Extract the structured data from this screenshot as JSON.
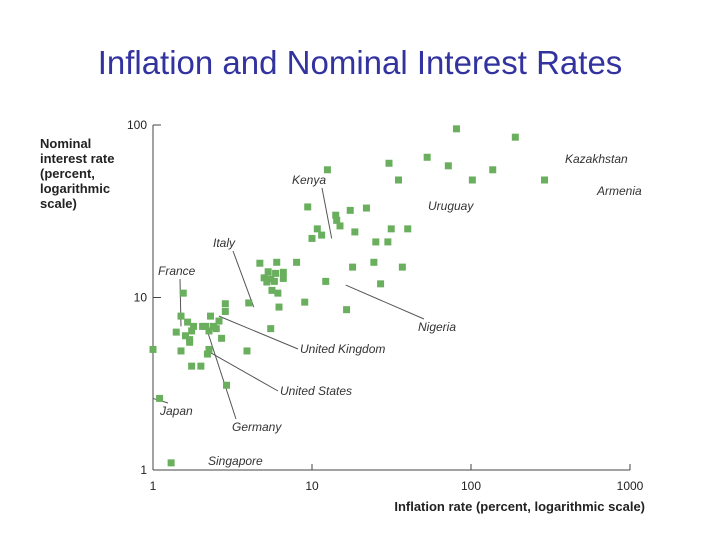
{
  "page": {
    "title": "Inflation and Nominal Interest Rates"
  },
  "chart_data": {
    "type": "scatter",
    "title": "Inflation and Nominal Interest Rates",
    "xlabel": "Inflation rate (percent, logarithmic scale)",
    "ylabel": "Nominal\ninterest rate\n(percent,\nlogarithmic\nscale)",
    "xscale": "log",
    "yscale": "log",
    "xlim": [
      1,
      1000
    ],
    "ylim": [
      1,
      100
    ],
    "xticks": [
      1,
      10,
      100,
      1000
    ],
    "yticks": [
      1,
      10,
      100
    ],
    "xtick_labels": [
      "1",
      "10",
      "100",
      "1000"
    ],
    "ytick_labels": [
      "1",
      "10",
      "100"
    ],
    "color": "#6aaf5e",
    "points": [
      [
        1.0,
        5.0
      ],
      [
        1.1,
        2.6
      ],
      [
        1.3,
        1.1
      ],
      [
        1.4,
        6.3
      ],
      [
        1.5,
        4.9
      ],
      [
        1.55,
        10.6
      ],
      [
        1.5,
        7.8
      ],
      [
        1.6,
        6.0
      ],
      [
        1.65,
        7.2
      ],
      [
        1.7,
        5.7
      ],
      [
        1.7,
        5.5
      ],
      [
        1.75,
        6.4
      ],
      [
        1.8,
        6.8
      ],
      [
        1.75,
        4.0
      ],
      [
        2.0,
        4.0
      ],
      [
        2.05,
        6.8
      ],
      [
        2.15,
        6.8
      ],
      [
        2.2,
        4.7
      ],
      [
        2.25,
        6.4
      ],
      [
        2.25,
        5.0
      ],
      [
        2.3,
        7.8
      ],
      [
        2.4,
        6.8
      ],
      [
        2.5,
        6.6
      ],
      [
        2.6,
        7.3
      ],
      [
        2.7,
        5.8
      ],
      [
        2.85,
        8.3
      ],
      [
        2.9,
        3.1
      ],
      [
        2.85,
        9.2
      ],
      [
        3.9,
        4.9
      ],
      [
        4.0,
        9.3
      ],
      [
        4.7,
        15.8
      ],
      [
        5.0,
        13.0
      ],
      [
        5.2,
        12.3
      ],
      [
        5.3,
        14.1
      ],
      [
        5.5,
        12.8
      ],
      [
        5.6,
        11.0
      ],
      [
        5.8,
        12.4
      ],
      [
        5.9,
        13.8
      ],
      [
        6.0,
        16.0
      ],
      [
        6.1,
        10.6
      ],
      [
        6.2,
        8.8
      ],
      [
        5.5,
        6.6
      ],
      [
        6.6,
        14.0
      ],
      [
        6.6,
        12.9
      ],
      [
        8.0,
        16.0
      ],
      [
        9.0,
        9.4
      ],
      [
        9.4,
        33.5
      ],
      [
        10.0,
        22.0
      ],
      [
        10.8,
        25.0
      ],
      [
        11.5,
        23.0
      ],
      [
        12.2,
        12.4
      ],
      [
        12.5,
        55.0
      ],
      [
        14.1,
        30.0
      ],
      [
        14.3,
        28.0
      ],
      [
        15.0,
        26.0
      ],
      [
        17.4,
        32.0
      ],
      [
        18.0,
        15.0
      ],
      [
        18.6,
        24.0
      ],
      [
        16.5,
        8.5
      ],
      [
        22.0,
        33.0
      ],
      [
        24.5,
        16.0
      ],
      [
        25.2,
        21.0
      ],
      [
        27.0,
        12.0
      ],
      [
        30.0,
        21.0
      ],
      [
        30.5,
        60.0
      ],
      [
        31.5,
        25.0
      ],
      [
        35.0,
        48.0
      ],
      [
        37.0,
        15.0
      ],
      [
        40.0,
        25.0
      ],
      [
        53.0,
        65.0
      ],
      [
        72.0,
        58.0
      ],
      [
        81.0,
        95.0
      ],
      [
        102.0,
        48.0
      ],
      [
        137.0,
        55.0
      ],
      [
        190.0,
        85.0
      ],
      [
        290.0,
        48.0
      ]
    ],
    "annotations": [
      {
        "label": "Kazakhstan",
        "x": 130,
        "y": 62
      },
      {
        "label": "Armenia",
        "x": 250,
        "y": 48
      },
      {
        "label": "Kenya",
        "x": 13.3,
        "y": 22
      },
      {
        "label": "Uruguay",
        "x": 23.3,
        "y": 33
      },
      {
        "label": "Italy",
        "x": 4.3,
        "y": 8.8
      },
      {
        "label": "France",
        "x": 1.5,
        "y": 6.8
      },
      {
        "label": "Nigeria",
        "x": 16.3,
        "y": 11.8
      },
      {
        "label": "United Kingdom",
        "x": 2.6,
        "y": 7.8
      },
      {
        "label": "United States",
        "x": 2.2,
        "y": 4.9
      },
      {
        "label": "Japan",
        "x": 1.0,
        "y": 2.6
      },
      {
        "label": "Germany",
        "x": 2.15,
        "y": 6.8
      },
      {
        "label": "Singapore",
        "x": 1.3,
        "y": 1.1
      }
    ]
  }
}
